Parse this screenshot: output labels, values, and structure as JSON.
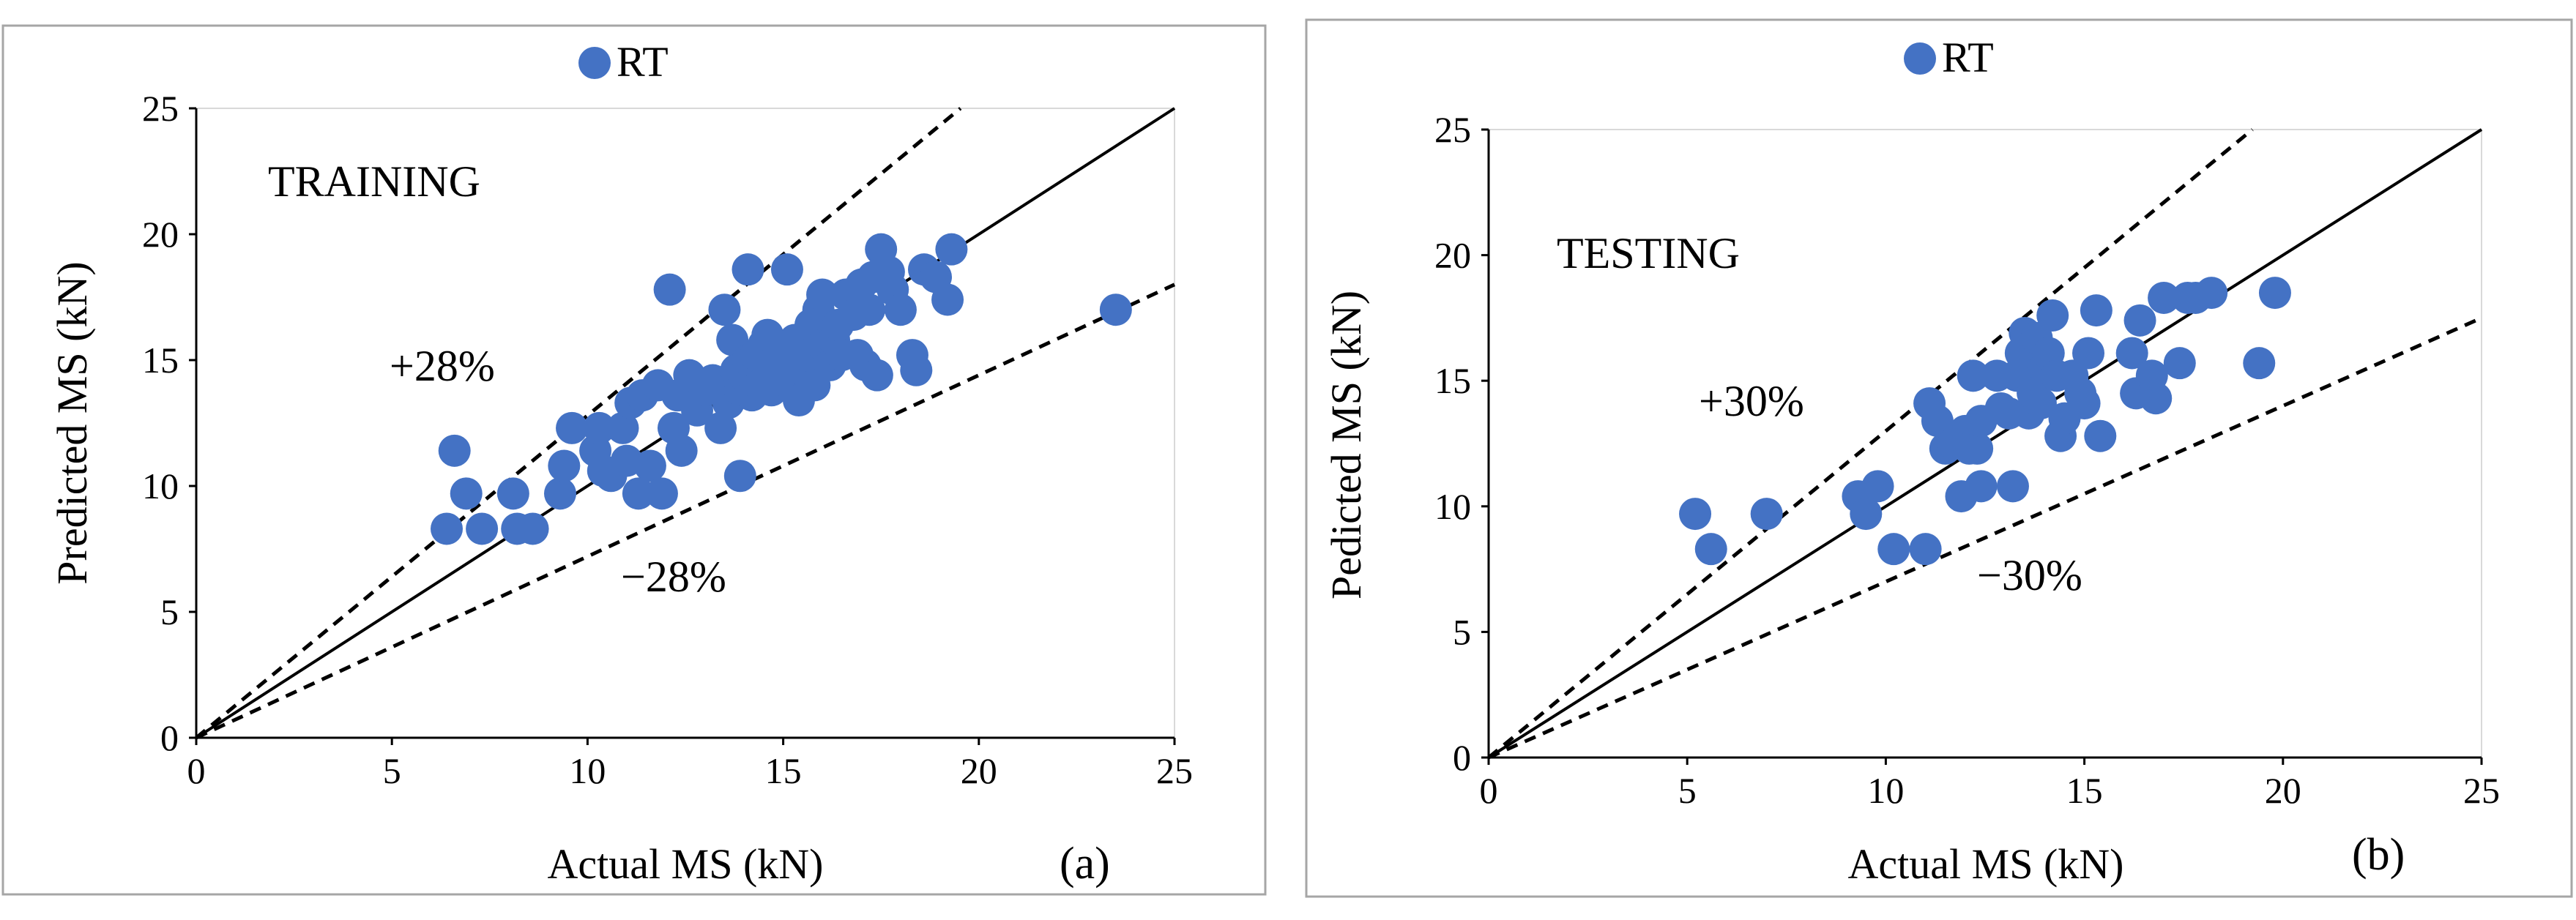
{
  "colors": {
    "marker": "#4472C4",
    "frame": "#a6a6a6",
    "axis": "#000000"
  },
  "chart_data": [
    {
      "type": "scatter",
      "panel_label": "(a)",
      "legend": "RT",
      "annotation": "TRAINING",
      "xlabel": "Actual MS (kN)",
      "ylabel": "Predicted MS (kN)",
      "xlim": [
        0,
        25
      ],
      "ylim": [
        0,
        25
      ],
      "xticks": [
        "0",
        "5",
        "10",
        "15",
        "20",
        "25"
      ],
      "yticks": [
        "0",
        "5",
        "10",
        "15",
        "20",
        "25"
      ],
      "bound_upper": 1.28,
      "bound_lower": 0.72,
      "bound_upper_label": "+28%",
      "bound_lower_label": "−28%",
      "points": [
        [
          6.4,
          8.3
        ],
        [
          6.6,
          11.4
        ],
        [
          6.9,
          9.7
        ],
        [
          7.3,
          8.3
        ],
        [
          8.1,
          9.7
        ],
        [
          8.2,
          8.3
        ],
        [
          8.6,
          8.3
        ],
        [
          9.3,
          9.7
        ],
        [
          9.4,
          10.8
        ],
        [
          9.6,
          12.3
        ],
        [
          10.2,
          11.4
        ],
        [
          10.3,
          12.3
        ],
        [
          10.4,
          10.6
        ],
        [
          10.6,
          10.4
        ],
        [
          10.9,
          12.3
        ],
        [
          11.0,
          11.0
        ],
        [
          11.1,
          13.3
        ],
        [
          11.3,
          9.7
        ],
        [
          11.4,
          13.6
        ],
        [
          11.6,
          10.8
        ],
        [
          11.8,
          14.0
        ],
        [
          11.9,
          9.7
        ],
        [
          12.1,
          17.8
        ],
        [
          12.2,
          12.3
        ],
        [
          12.3,
          13.6
        ],
        [
          12.4,
          11.4
        ],
        [
          12.6,
          14.4
        ],
        [
          12.8,
          13.0
        ],
        [
          13.0,
          13.8
        ],
        [
          13.2,
          14.2
        ],
        [
          13.4,
          12.3
        ],
        [
          13.5,
          17.0
        ],
        [
          13.6,
          13.3
        ],
        [
          13.7,
          15.8
        ],
        [
          13.8,
          14.6
        ],
        [
          13.9,
          10.4
        ],
        [
          13.9,
          13.8
        ],
        [
          14.0,
          14.4
        ],
        [
          14.1,
          15.0
        ],
        [
          14.1,
          18.6
        ],
        [
          14.2,
          13.6
        ],
        [
          14.3,
          15.2
        ],
        [
          14.4,
          14.0
        ],
        [
          14.5,
          15.6
        ],
        [
          14.6,
          14.8
        ],
        [
          14.6,
          16.0
        ],
        [
          14.7,
          13.8
        ],
        [
          14.8,
          14.4
        ],
        [
          14.9,
          15.0
        ],
        [
          15.0,
          15.4
        ],
        [
          15.0,
          14.2
        ],
        [
          15.1,
          18.6
        ],
        [
          15.2,
          14.8
        ],
        [
          15.3,
          15.8
        ],
        [
          15.4,
          13.4
        ],
        [
          15.5,
          14.6
        ],
        [
          15.6,
          15.2
        ],
        [
          15.7,
          16.4
        ],
        [
          15.8,
          14.0
        ],
        [
          15.9,
          17.0
        ],
        [
          16.0,
          15.6
        ],
        [
          16.0,
          17.6
        ],
        [
          16.2,
          14.8
        ],
        [
          16.3,
          15.8
        ],
        [
          16.4,
          16.4
        ],
        [
          16.5,
          15.2
        ],
        [
          16.6,
          17.6
        ],
        [
          16.8,
          16.8
        ],
        [
          16.9,
          15.2
        ],
        [
          17.0,
          18.0
        ],
        [
          17.1,
          14.8
        ],
        [
          17.2,
          17.0
        ],
        [
          17.3,
          18.3
        ],
        [
          17.4,
          14.4
        ],
        [
          17.5,
          19.4
        ],
        [
          17.7,
          18.5
        ],
        [
          17.8,
          17.8
        ],
        [
          18.0,
          17.0
        ],
        [
          18.3,
          15.2
        ],
        [
          18.4,
          14.6
        ],
        [
          18.6,
          18.6
        ],
        [
          18.9,
          18.3
        ],
        [
          19.2,
          17.4
        ],
        [
          19.3,
          19.4
        ],
        [
          23.5,
          17.0
        ]
      ]
    },
    {
      "type": "scatter",
      "panel_label": "(b)",
      "legend": "RT",
      "annotation": "TESTING",
      "xlabel": "Actual MS (kN)",
      "ylabel": "Pedicted MS (kN)",
      "xlim": [
        0,
        25
      ],
      "ylim": [
        0,
        25
      ],
      "xticks": [
        "0",
        "5",
        "10",
        "15",
        "20",
        "25"
      ],
      "yticks": [
        "0",
        "5",
        "10",
        "15",
        "20",
        "25"
      ],
      "bound_upper": 1.3,
      "bound_lower": 0.7,
      "bound_upper_label": "+30%",
      "bound_lower_label": "−30%",
      "points": [
        [
          5.2,
          9.7
        ],
        [
          5.6,
          8.3
        ],
        [
          7.0,
          9.7
        ],
        [
          9.3,
          10.4
        ],
        [
          9.5,
          9.7
        ],
        [
          9.8,
          10.8
        ],
        [
          10.2,
          8.3
        ],
        [
          11.0,
          8.3
        ],
        [
          11.1,
          14.1
        ],
        [
          11.3,
          13.4
        ],
        [
          11.5,
          12.3
        ],
        [
          11.7,
          12.5
        ],
        [
          11.9,
          10.4
        ],
        [
          12.0,
          13.0
        ],
        [
          12.1,
          12.3
        ],
        [
          12.2,
          15.2
        ],
        [
          12.3,
          12.3
        ],
        [
          12.4,
          10.8
        ],
        [
          12.4,
          13.4
        ],
        [
          12.8,
          15.2
        ],
        [
          12.9,
          13.9
        ],
        [
          13.1,
          13.7
        ],
        [
          13.2,
          10.8
        ],
        [
          13.3,
          15.2
        ],
        [
          13.4,
          16.1
        ],
        [
          13.5,
          16.9
        ],
        [
          13.6,
          13.7
        ],
        [
          13.7,
          14.5
        ],
        [
          13.8,
          16.7
        ],
        [
          13.9,
          14.1
        ],
        [
          14.0,
          15.5
        ],
        [
          14.1,
          16.1
        ],
        [
          14.2,
          17.6
        ],
        [
          14.3,
          15.2
        ],
        [
          14.4,
          12.8
        ],
        [
          14.5,
          13.5
        ],
        [
          14.7,
          15.2
        ],
        [
          14.9,
          14.5
        ],
        [
          15.0,
          14.1
        ],
        [
          15.1,
          16.1
        ],
        [
          15.3,
          17.8
        ],
        [
          15.4,
          12.8
        ],
        [
          16.2,
          16.1
        ],
        [
          16.3,
          14.5
        ],
        [
          16.4,
          17.4
        ],
        [
          16.7,
          15.2
        ],
        [
          16.8,
          14.3
        ],
        [
          17.0,
          18.3
        ],
        [
          17.4,
          15.7
        ],
        [
          17.6,
          18.3
        ],
        [
          17.8,
          18.3
        ],
        [
          18.2,
          18.5
        ],
        [
          19.4,
          15.7
        ],
        [
          19.8,
          18.5
        ]
      ]
    }
  ]
}
